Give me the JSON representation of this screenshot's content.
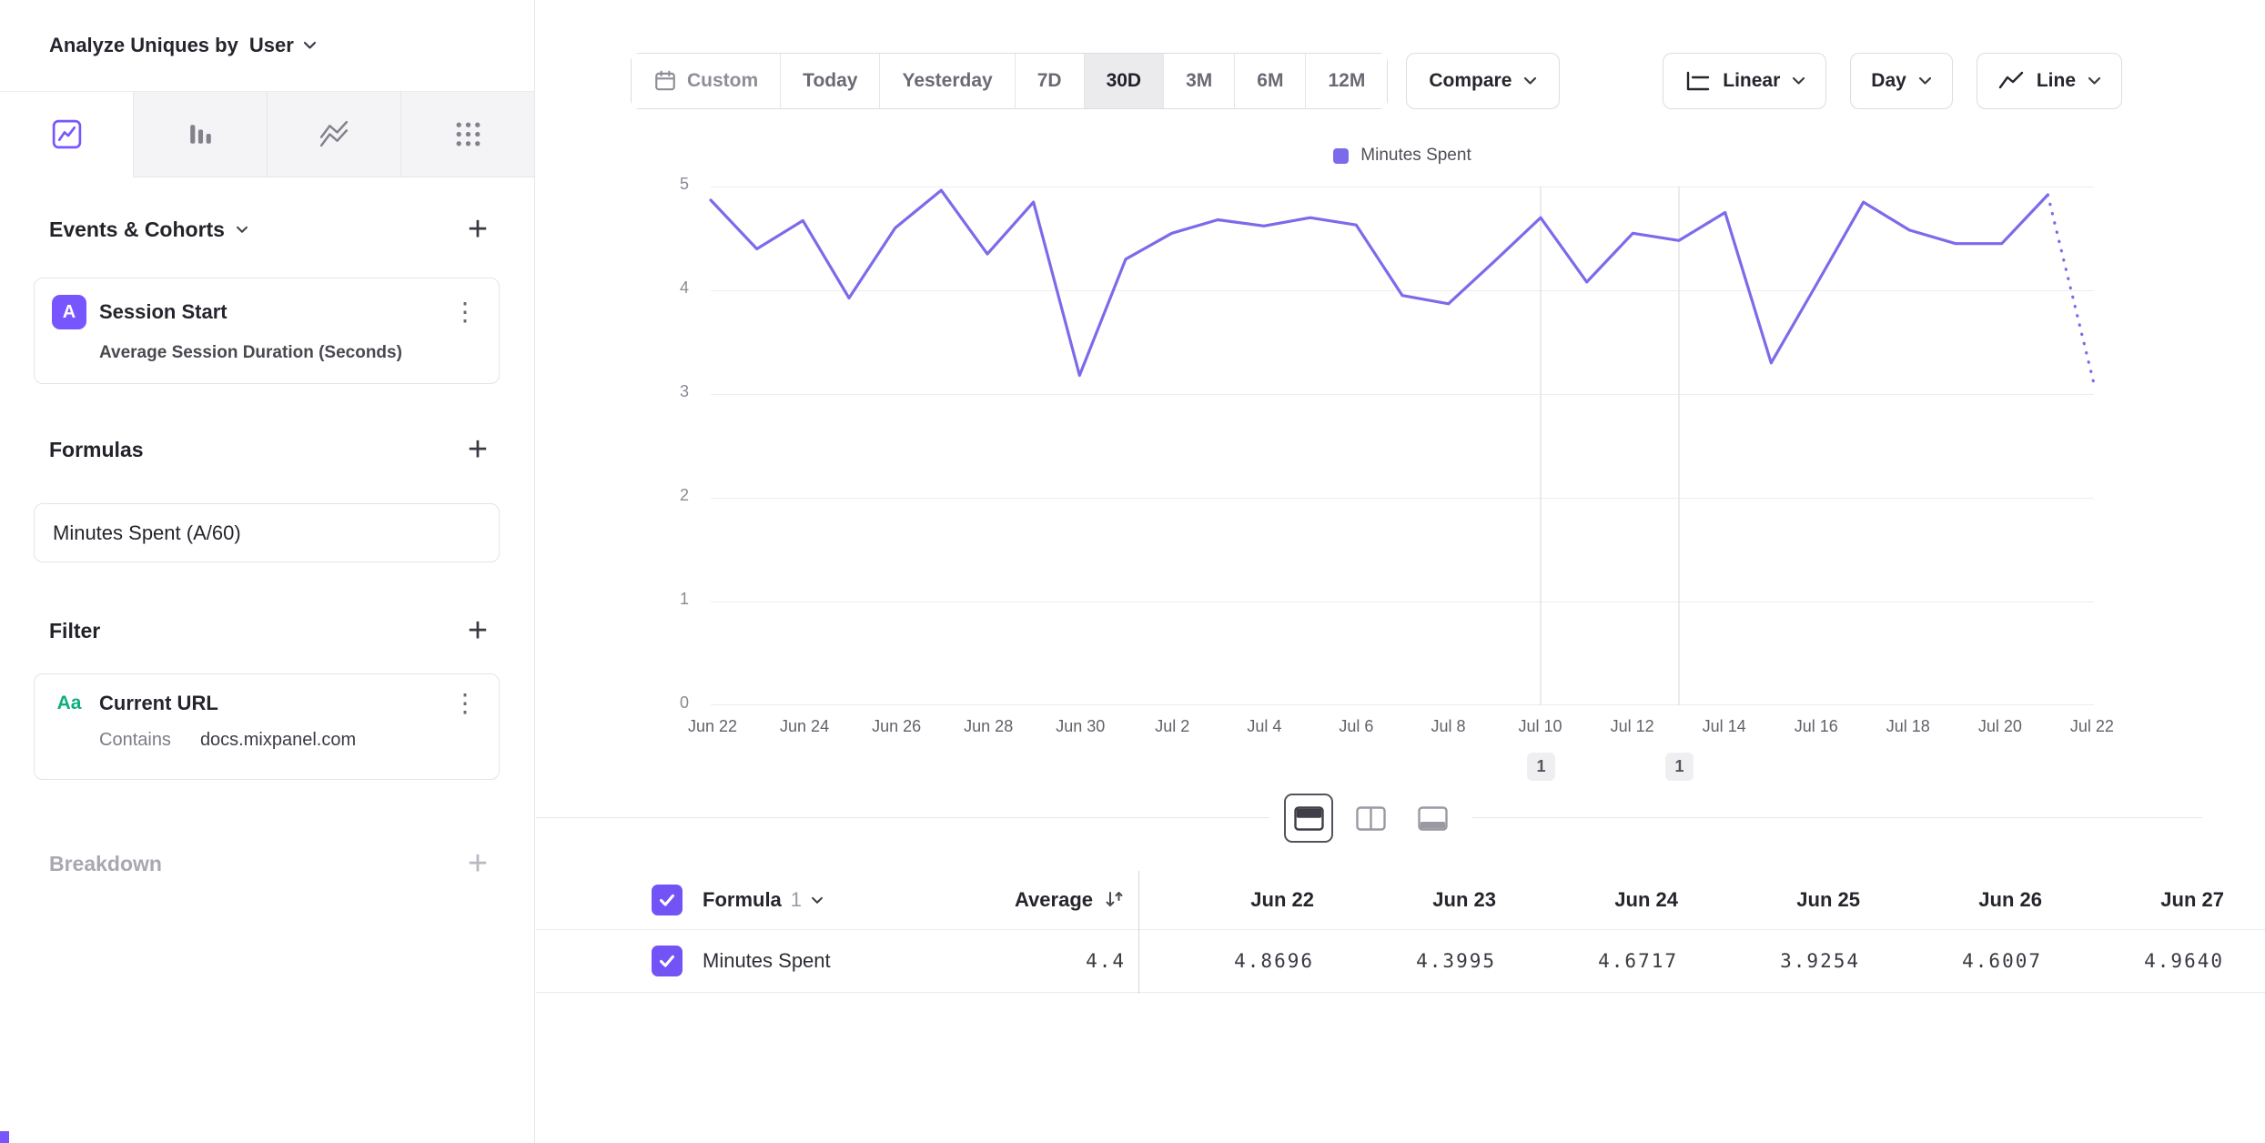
{
  "sidebar": {
    "analyze_label": "Analyze Uniques by",
    "analyze_value": "User",
    "tab_icons": [
      "insights-line-chart",
      "funnels-bars",
      "flows-zigzag",
      "retention-grid"
    ],
    "sections": {
      "events": "Events & Cohorts",
      "formulas": "Formulas",
      "filter": "Filter",
      "breakdown": "Breakdown"
    },
    "event_card": {
      "badge": "A",
      "title": "Session Start",
      "subtitle": "Average Session Duration (Seconds)"
    },
    "formula_card": {
      "title": "Minutes Spent (A/60)"
    },
    "filter_card": {
      "badge": "Aa",
      "title": "Current URL",
      "operator": "Contains",
      "value": "docs.mixpanel.com"
    }
  },
  "toolbar": {
    "date_ranges": [
      "Custom",
      "Today",
      "Yesterday",
      "7D",
      "30D",
      "3M",
      "6M",
      "12M"
    ],
    "selected_range": "30D",
    "compare_label": "Compare",
    "scale_label": "Linear",
    "interval_label": "Day",
    "chart_type_label": "Line"
  },
  "chart_data": {
    "type": "line",
    "legend": [
      "Minutes Spent"
    ],
    "color": "#7b6bea",
    "ylim": [
      0,
      5
    ],
    "yticks_desc": [
      "5",
      "4",
      "3",
      "2",
      "1",
      "0"
    ],
    "x": [
      "Jun 22",
      "Jun 23",
      "Jun 24",
      "Jun 25",
      "Jun 26",
      "Jun 27",
      "Jun 28",
      "Jun 29",
      "Jun 30",
      "Jul 1",
      "Jul 2",
      "Jul 3",
      "Jul 4",
      "Jul 5",
      "Jul 6",
      "Jul 7",
      "Jul 8",
      "Jul 9",
      "Jul 10",
      "Jul 11",
      "Jul 12",
      "Jul 13",
      "Jul 14",
      "Jul 15",
      "Jul 16",
      "Jul 17",
      "Jul 18",
      "Jul 19",
      "Jul 20",
      "Jul 21",
      "Jul 22"
    ],
    "series": [
      {
        "name": "Minutes Spent",
        "values": [
          4.8696,
          4.3995,
          4.6717,
          3.9254,
          4.6007,
          4.964,
          4.35,
          4.85,
          3.18,
          4.3,
          4.55,
          4.68,
          4.62,
          4.7,
          4.63,
          3.95,
          3.87,
          4.28,
          4.7,
          4.08,
          4.55,
          4.48,
          4.75,
          3.3,
          4.07,
          4.85,
          4.58,
          4.45,
          4.45,
          4.92,
          3.1
        ]
      }
    ],
    "incomplete_last_point": true,
    "annotations": [
      {
        "index": 18,
        "date": "Jul 10",
        "label": "1"
      },
      {
        "index": 21,
        "date": "Jul 13",
        "label": "1"
      }
    ]
  },
  "view_toggle": {
    "options": [
      "chart-and-table",
      "side-by-side",
      "table-only"
    ],
    "selected": "chart-and-table"
  },
  "table": {
    "formula_label": "Formula",
    "formula_index": "1",
    "average_label": "Average",
    "columns": [
      "Jun 22",
      "Jun 23",
      "Jun 24",
      "Jun 25",
      "Jun 26",
      "Jun 27"
    ],
    "rows": [
      {
        "name": "Minutes Spent",
        "average": "4.4",
        "values": [
          "4.8696",
          "4.3995",
          "4.6717",
          "3.9254",
          "4.6007",
          "4.9640"
        ]
      }
    ]
  }
}
